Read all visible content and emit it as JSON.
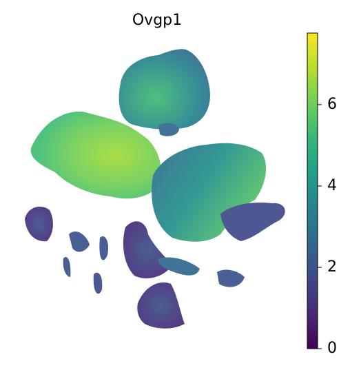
{
  "chart_data": {
    "type": "embedding",
    "title": "Ovgp1",
    "colorbar": {
      "clim": [
        0,
        7.76
      ],
      "cticks": [
        0,
        2,
        4,
        6
      ],
      "colormap": [
        "#440154",
        "#482878",
        "#3e4989",
        "#31688e",
        "#26828e",
        "#1f9e89",
        "#35b779",
        "#6ece58",
        "#b5de2b",
        "#fde725"
      ]
    }
  }
}
